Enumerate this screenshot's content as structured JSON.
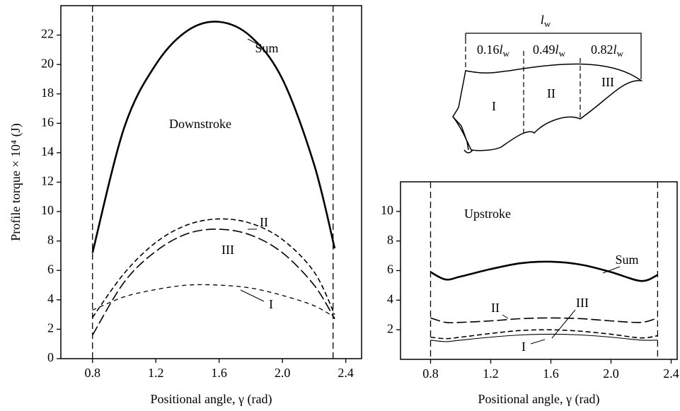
{
  "chart_data": [
    {
      "type": "line",
      "annotation": "Downstroke",
      "x_label": "Positional angle, γ (rad)",
      "y_label": "Profile torque × 10⁴ (J)",
      "x": [
        0.8,
        1.0,
        1.2,
        1.4,
        1.6,
        1.8,
        2.0,
        2.2,
        2.33
      ],
      "series": [
        {
          "name": "Sum",
          "color": "#000000",
          "line_style": "solid",
          "values": [
            7.2,
            15.7,
            20.0,
            22.3,
            22.9,
            21.9,
            19.0,
            13.2,
            7.5
          ]
        },
        {
          "name": "II",
          "color": "#000000",
          "line_style": "short-dash",
          "values": [
            2.8,
            5.8,
            7.9,
            9.1,
            9.5,
            9.2,
            8.1,
            5.9,
            3.0
          ]
        },
        {
          "name": "III",
          "color": "#000000",
          "line_style": "long-dash",
          "values": [
            1.6,
            5.2,
            7.3,
            8.5,
            8.8,
            8.4,
            7.2,
            5.0,
            2.7
          ]
        },
        {
          "name": "I",
          "color": "#000000",
          "line_style": "dash",
          "values": [
            3.3,
            4.2,
            4.7,
            5.0,
            5.0,
            4.8,
            4.3,
            3.6,
            2.8
          ]
        }
      ],
      "reference_lines": [
        0.8,
        2.32
      ],
      "xlim": [
        0.6,
        2.5
      ],
      "xticks": [
        0.8,
        1.2,
        1.6,
        {
          "value": 2,
          "label": "2.0"
        },
        2.4
      ],
      "ylim": [
        0,
        24
      ],
      "yticks": [
        0,
        2,
        4,
        6,
        8,
        10,
        12,
        14,
        16,
        18,
        20,
        22
      ]
    },
    {
      "type": "line",
      "annotation": "Upstroke",
      "x_label": "Positional angle, γ (rad)",
      "x": [
        0.8,
        0.9,
        1.0,
        1.2,
        1.4,
        1.6,
        1.8,
        2.0,
        2.2,
        2.31
      ],
      "series": [
        {
          "name": "Sum",
          "color": "#000000",
          "line_style": "solid",
          "values": [
            5.9,
            5.4,
            5.6,
            6.1,
            6.5,
            6.6,
            6.4,
            5.9,
            5.3,
            5.7
          ]
        },
        {
          "name": "II",
          "color": "#000000",
          "line_style": "long-dash",
          "values": [
            2.8,
            2.5,
            2.5,
            2.6,
            2.75,
            2.8,
            2.75,
            2.6,
            2.5,
            2.8
          ]
        },
        {
          "name": "III",
          "color": "#000000",
          "line_style": "short-dash",
          "values": [
            1.5,
            1.4,
            1.5,
            1.75,
            1.95,
            2.0,
            1.9,
            1.7,
            1.45,
            1.6
          ]
        },
        {
          "name": "I",
          "color": "#000000",
          "line_style": "solid-thin",
          "values": [
            1.3,
            1.2,
            1.3,
            1.5,
            1.65,
            1.7,
            1.65,
            1.5,
            1.3,
            1.3
          ]
        }
      ],
      "reference_lines": [
        0.8,
        2.31
      ],
      "xlim": [
        0.6,
        2.44
      ],
      "xticks": [
        0.8,
        1.2,
        1.6,
        {
          "value": 2,
          "label": "2.0"
        },
        2.4
      ],
      "ylim": [
        0,
        12
      ],
      "yticks": [
        2,
        4,
        6,
        8,
        10
      ]
    }
  ],
  "wing_diagram": {
    "length_symbol": "l",
    "length_subscript": "w",
    "stations": [
      "0.16",
      "0.49",
      "0.82"
    ],
    "sections": [
      "I",
      "II",
      "III"
    ]
  }
}
